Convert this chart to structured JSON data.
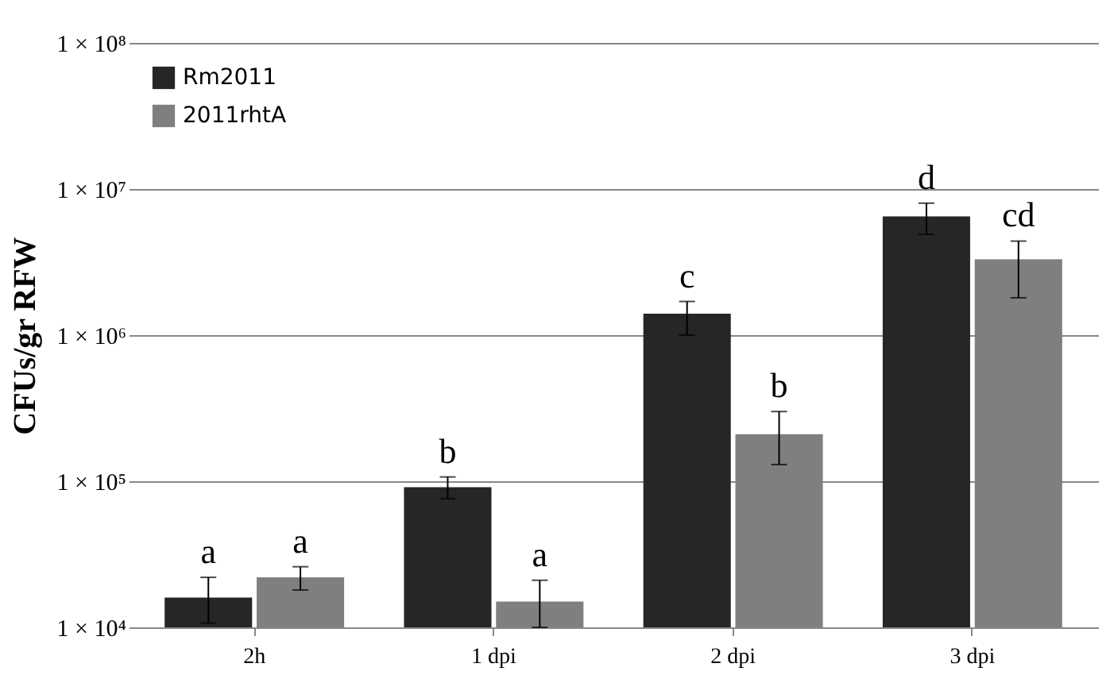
{
  "chart_data": {
    "type": "bar",
    "ylabel": "CFUs/gr RFW",
    "categories": [
      "2h",
      "1 dpi",
      "2 dpi",
      "3 dpi"
    ],
    "series": [
      {
        "name": "Rm2011",
        "color": "#262626",
        "values": [
          16000,
          91000,
          1400000,
          6500000
        ],
        "errors": [
          [
            10700,
            22000
          ],
          [
            76000,
            107000
          ],
          [
            1000000,
            1700000
          ],
          [
            4900000,
            8000000
          ]
        ]
      },
      {
        "name": "2011rhtA",
        "color": "#7f7f7f",
        "values": [
          22000,
          15000,
          210000,
          3300000
        ],
        "errors": [
          [
            18000,
            26000
          ],
          [
            10000,
            21000
          ],
          [
            130000,
            300000
          ],
          [
            1800000,
            4400000
          ]
        ]
      }
    ],
    "log": true,
    "ylim": [
      10000,
      100000000
    ],
    "yticks": [
      {
        "value": 10000,
        "label": "1 × 10⁴"
      },
      {
        "value": 100000,
        "label": "1 × 10⁵"
      },
      {
        "value": 1000000,
        "label": "1 × 10⁶"
      },
      {
        "value": 10000000,
        "label": "1 × 10⁷"
      },
      {
        "value": 100000000,
        "label": "1 × 10⁸"
      }
    ],
    "grid": "y",
    "legend": "top left",
    "annotations": [
      {
        "text": "a",
        "x": "2h",
        "y": 16000
      },
      {
        "text": "a",
        "x": "2h",
        "y": 22000
      },
      {
        "text": "b",
        "x": "1 dpi",
        "y": 91000
      },
      {
        "text": "a",
        "x": "1 dpi",
        "y": 15000
      },
      {
        "text": "c",
        "x": "2 dpi",
        "y": 1400000
      },
      {
        "text": "b",
        "x": "2 dpi",
        "y": 210000
      },
      {
        "text": "d",
        "x": "3 dpi",
        "y": 6500000
      },
      {
        "text": "cd",
        "x": "3 dpi",
        "y": 3300000
      }
    ]
  }
}
